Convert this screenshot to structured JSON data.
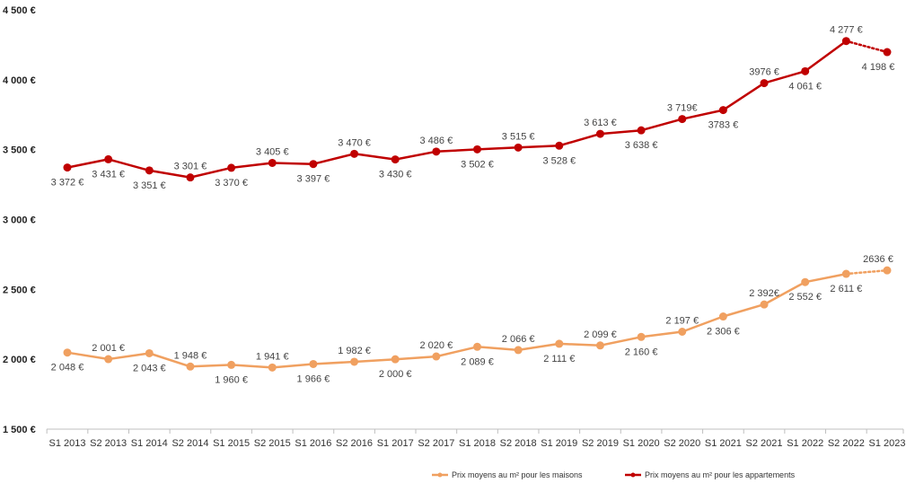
{
  "chart_data": {
    "type": "line",
    "title": "",
    "xlabel": "",
    "ylabel": "",
    "ylim": [
      1500,
      4500
    ],
    "yticks": [
      {
        "value": 1500,
        "label": "1 500 €"
      },
      {
        "value": 2000,
        "label": "2 000 €"
      },
      {
        "value": 2500,
        "label": "2 500 €"
      },
      {
        "value": 3000,
        "label": "3 000 €"
      },
      {
        "value": 3500,
        "label": "3 500 €"
      },
      {
        "value": 4000,
        "label": "4 000 €"
      },
      {
        "value": 4500,
        "label": "4 500 €"
      }
    ],
    "categories": [
      "S1 2013",
      "S2 2013",
      "S1 2014",
      "S2 2014",
      "S1 2015",
      "S2 2015",
      "S1 2016",
      "S2 2016",
      "S1 2017",
      "S2 2017",
      "S1 2018",
      "S2 2018",
      "S1 2019",
      "S2 2019",
      "S1 2020",
      "S2 2020",
      "S1 2021",
      "S2 2021",
      "S1 2022",
      "S2 2022",
      "S1 2023"
    ],
    "series": [
      {
        "name": "Prix moyens au m² pour les appartements",
        "color": "#c00000",
        "values": [
          3372,
          3431,
          3351,
          3301,
          3370,
          3405,
          3397,
          3470,
          3430,
          3486,
          3502,
          3515,
          3528,
          3613,
          3638,
          3719,
          3783,
          3976,
          4061,
          4277,
          4198
        ],
        "labels": [
          "3 372 €",
          "3 431 €",
          "3 351 €",
          "3 301 €",
          "3 370 €",
          "3 405 €",
          "3 397 €",
          "3 470 €",
          "3 430 €",
          "3 486 €",
          "3 502 €",
          "3 515 €",
          "3 528 €",
          "3 613 €",
          "3 638 €",
          "3 719€",
          "3783 €",
          "3976 €",
          "4 061 €",
          "4 277 €",
          "4 198 €"
        ],
        "label_pos": [
          "below",
          "below",
          "below",
          "above",
          "below",
          "above",
          "below",
          "above",
          "below",
          "above",
          "below",
          "above",
          "below",
          "above",
          "below",
          "above",
          "below",
          "above",
          "below",
          "above",
          "below"
        ],
        "dotted_last_segment": true
      },
      {
        "name": "Prix moyens au m² pour les maisons",
        "color": "#f0a060",
        "values": [
          2048,
          2001,
          2043,
          1948,
          1960,
          1941,
          1966,
          1982,
          2000,
          2020,
          2089,
          2066,
          2111,
          2099,
          2160,
          2197,
          2306,
          2392,
          2552,
          2611,
          2636
        ],
        "labels": [
          "2 048 €",
          "2 001 €",
          "2 043 €",
          "1 948 €",
          "1 960 €",
          "1 941 €",
          "1 966 €",
          "1 982 €",
          "2 000 €",
          "2 020 €",
          "2 089 €",
          "2 066 €",
          "2 111 €",
          "2 099 €",
          "2 160 €",
          "2 197 €",
          "2 306 €",
          "2 392€",
          "2 552 €",
          "2 611 €",
          "2636 €"
        ],
        "label_pos": [
          "below",
          "above",
          "below",
          "above",
          "below",
          "above",
          "below",
          "above",
          "below",
          "above",
          "below",
          "above",
          "below",
          "above",
          "below",
          "above",
          "below",
          "above",
          "below",
          "below",
          "above"
        ],
        "dotted_last_segment": true
      }
    ],
    "legend": {
      "position": "bottom",
      "items": [
        "Prix moyens au m² pour les maisons",
        "Prix moyens au m² pour les appartements"
      ]
    }
  }
}
